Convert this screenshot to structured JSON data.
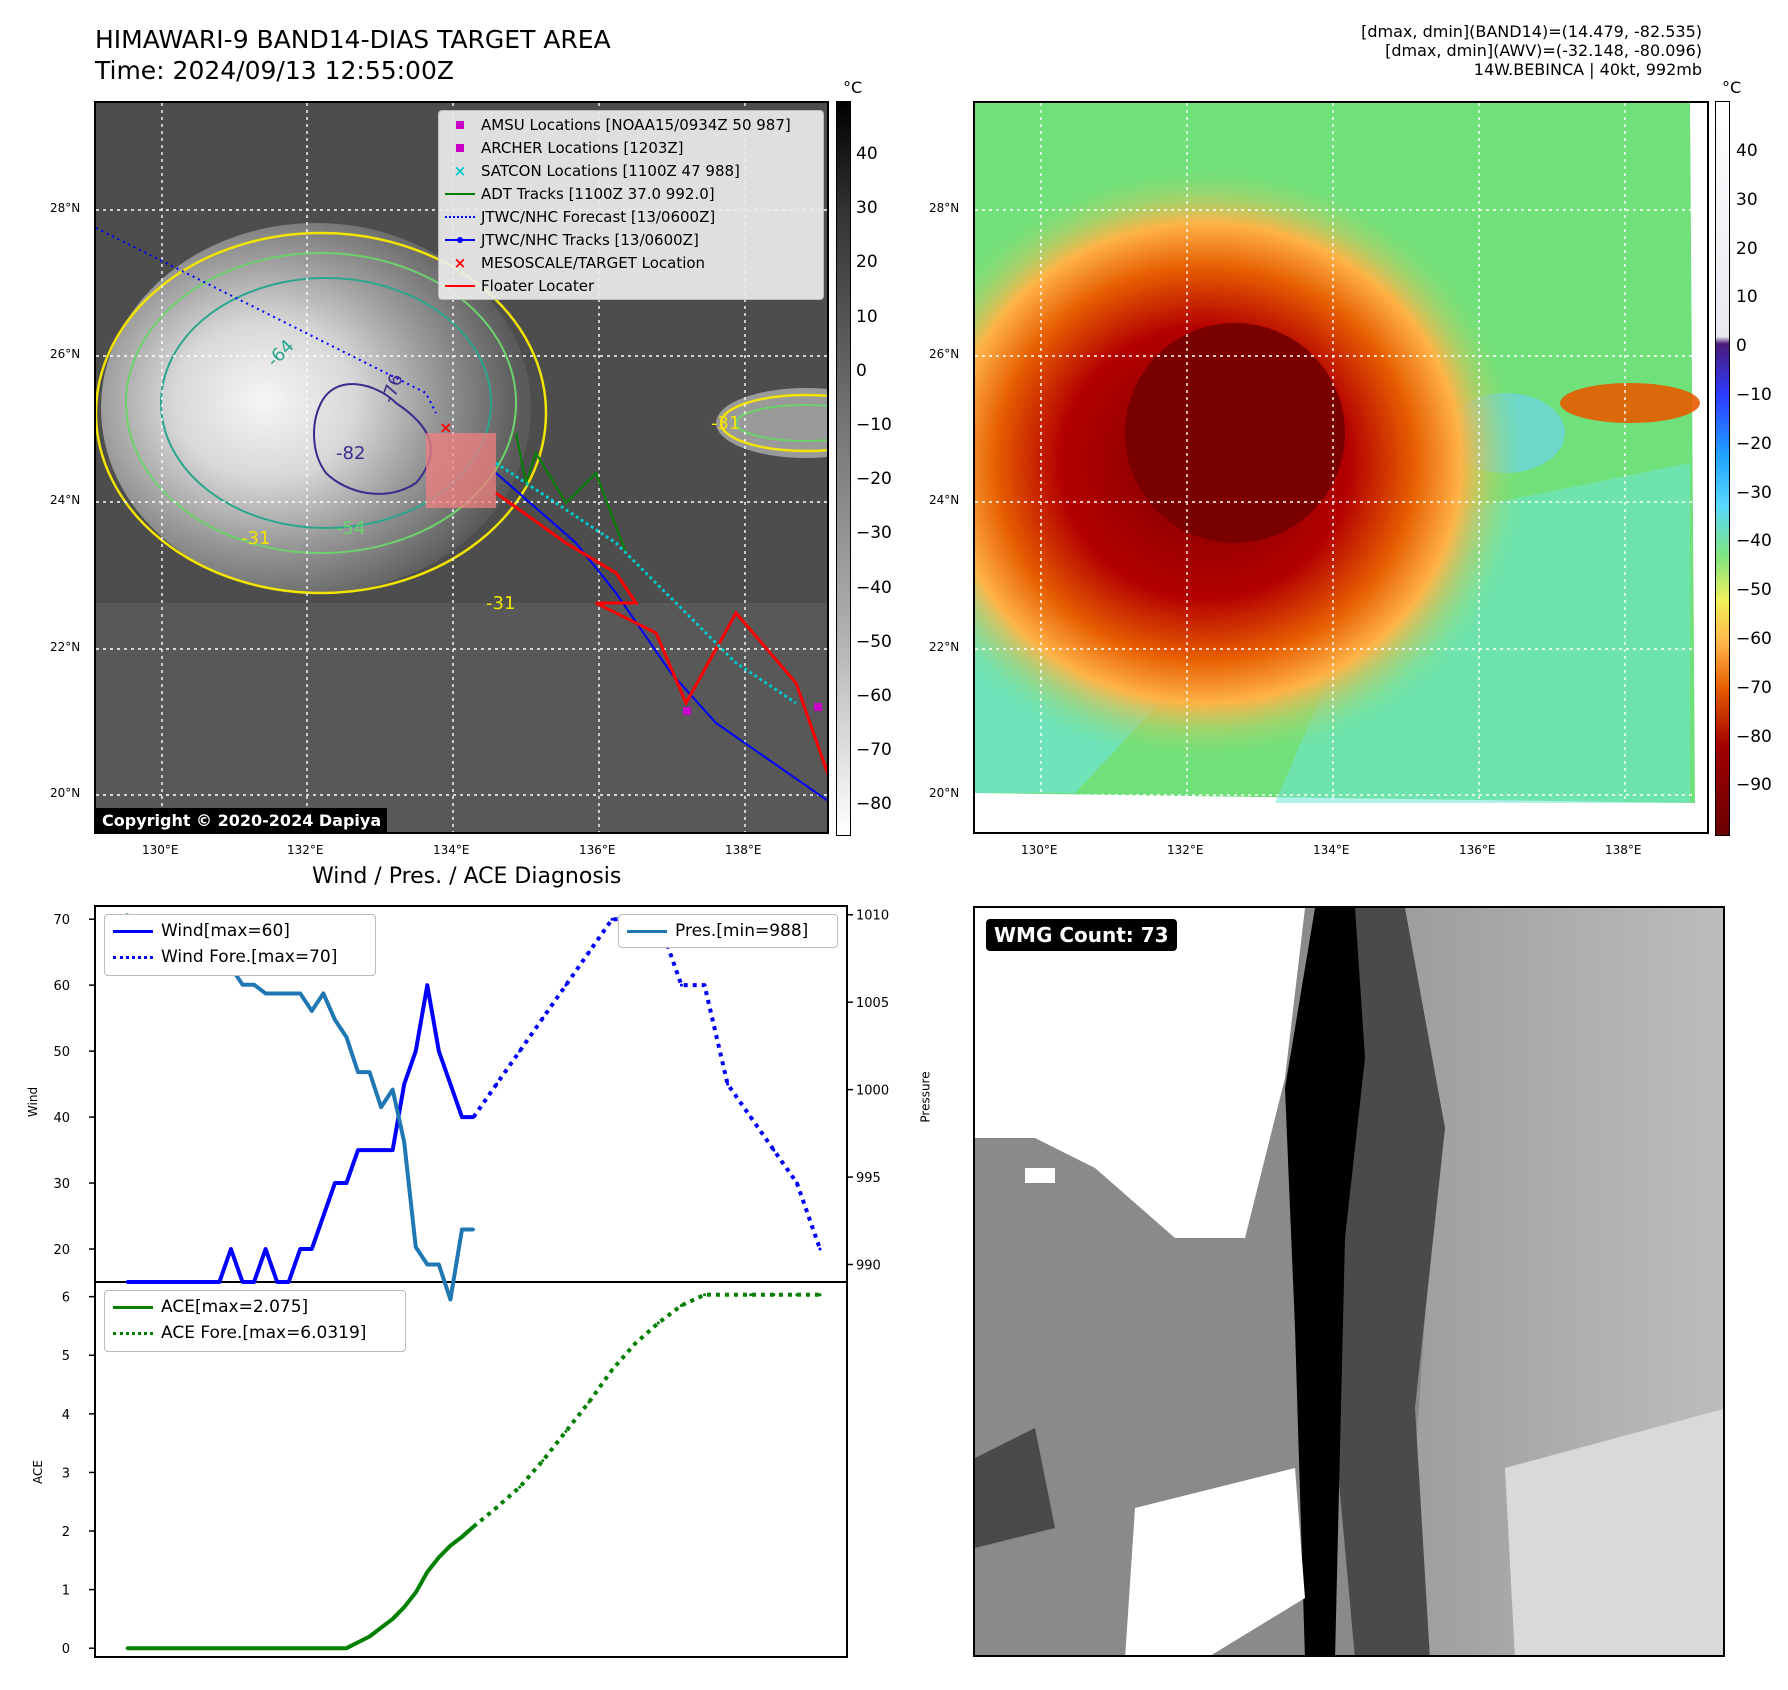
{
  "header": {
    "title": "HIMAWARI-9 BAND14-DIAS TARGET AREA",
    "time": "Time: 2024/09/13 12:55:00Z",
    "meta_line1": "[dmax, dmin](BAND14)=(14.479, -82.535)",
    "meta_line2": "[dmax, dmin](AWV)=(-32.148, -80.096)",
    "meta_line3": "14W.BEBINCA | 40kt, 992mb"
  },
  "map_left": {
    "copyright": "Copyright © 2020-2024 Dapiya",
    "lat_labels": [
      "28°N",
      "26°N",
      "24°N",
      "22°N",
      "20°N"
    ],
    "lon_labels": [
      "130°E",
      "132°E",
      "134°E",
      "136°E",
      "138°E"
    ],
    "contour_labels": [
      "-76",
      "-82",
      "-64",
      "-54",
      "-31",
      "-31",
      "-31"
    ],
    "colorbar": {
      "unit": "°C",
      "ticks": [
        "40",
        "30",
        "20",
        "10",
        "0",
        "−10",
        "−20",
        "−30",
        "−40",
        "−50",
        "−60",
        "−70",
        "−80"
      ]
    },
    "legend": [
      {
        "label": "AMSU Locations [NOAA15/0934Z 50 987]",
        "marker": "square",
        "color": "#c800c8"
      },
      {
        "label": "ARCHER Locations [1203Z]",
        "marker": "square",
        "color": "#c800c8"
      },
      {
        "label": "SATCON Locations [1100Z 47 988]",
        "marker": "x",
        "color": "#00c8c8"
      },
      {
        "label": "ADT Tracks [1100Z 37.0 992.0]",
        "marker": "line",
        "color": "#008000"
      },
      {
        "label": "JTWC/NHC Forecast [13/0600Z]",
        "marker": "dotted",
        "color": "#0000ff"
      },
      {
        "label": "JTWC/NHC Tracks [13/0600Z]",
        "marker": "line-dot",
        "color": "#0000ff"
      },
      {
        "label": "MESOSCALE/TARGET Location",
        "marker": "x",
        "color": "#ff0000"
      },
      {
        "label": "Floater Locater",
        "marker": "line",
        "color": "#ff0000"
      }
    ]
  },
  "map_right": {
    "lat_labels": [
      "28°N",
      "26°N",
      "24°N",
      "22°N",
      "20°N"
    ],
    "lon_labels": [
      "130°E",
      "132°E",
      "134°E",
      "136°E",
      "138°E"
    ],
    "colorbar": {
      "unit": "°C",
      "ticks": [
        "40",
        "30",
        "20",
        "10",
        "0",
        "−10",
        "−20",
        "−30",
        "−40",
        "−50",
        "−60",
        "−70",
        "−80",
        "−90"
      ]
    }
  },
  "diagnosis": {
    "title": "Wind / Pres. / ACE Diagnosis",
    "wind_ylabel": "Wind",
    "pres_ylabel": "Pressure",
    "ace_ylabel": "ACE",
    "legend_wind": "Wind[max=60]",
    "legend_wind_fore": "Wind Fore.[max=70]",
    "legend_pres": "Pres.[min=988]",
    "legend_ace": "ACE[max=2.075]",
    "legend_ace_fore": "ACE Fore.[max=6.0319]"
  },
  "wmg": {
    "label": "WMG Count: 73"
  },
  "chart_data": [
    {
      "type": "line",
      "title": "Wind / Pres. / ACE Diagnosis",
      "ylabel": "Wind",
      "ylim": [
        15,
        72
      ],
      "yticks": [
        20,
        30,
        40,
        50,
        60,
        70
      ],
      "series": [
        {
          "name": "Wind[max=60]",
          "color": "#0000ff",
          "style": "solid",
          "x": [
            0,
            1,
            2,
            3,
            4,
            5,
            6,
            7,
            8,
            9,
            10,
            11,
            12,
            13,
            14,
            15,
            16,
            17,
            18,
            19,
            20,
            21,
            22,
            23,
            24,
            25,
            26,
            27,
            28,
            29,
            30
          ],
          "values": [
            15,
            15,
            15,
            15,
            15,
            15,
            15,
            15,
            15,
            20,
            15,
            15,
            20,
            15,
            15,
            20,
            20,
            25,
            30,
            30,
            35,
            35,
            35,
            35,
            45,
            50,
            60,
            50,
            45,
            40,
            40
          ]
        },
        {
          "name": "Wind Fore.[max=70]",
          "color": "#0000ff",
          "style": "dotted",
          "x": [
            30,
            32,
            34,
            36,
            38,
            40,
            42,
            44,
            46,
            48,
            50,
            52,
            54,
            56,
            58,
            60
          ],
          "values": [
            40,
            45,
            50,
            55,
            60,
            65,
            70,
            70,
            70,
            60,
            60,
            45,
            40,
            35,
            30,
            20
          ]
        }
      ]
    },
    {
      "type": "line",
      "ylabel": "Pressure",
      "ylim": [
        989,
        1010.5
      ],
      "yticks": [
        990,
        995,
        1000,
        1005,
        1010
      ],
      "series": [
        {
          "name": "Pres.[min=988]",
          "color": "#1f77b4",
          "style": "solid",
          "x": [
            0,
            1,
            2,
            3,
            4,
            5,
            6,
            7,
            8,
            9,
            10,
            11,
            12,
            13,
            14,
            15,
            16,
            17,
            18,
            19,
            20,
            21,
            22,
            23,
            24,
            25,
            26,
            27,
            28,
            29,
            30
          ],
          "values": [
            1010,
            1009,
            1009,
            1009,
            1009,
            1009.5,
            1009.5,
            1008,
            1008,
            1007,
            1006,
            1006,
            1005.5,
            1005.5,
            1005.5,
            1005.5,
            1004.5,
            1005.5,
            1004,
            1003,
            1001,
            1001,
            999,
            1000,
            997,
            991,
            990,
            990,
            988,
            992,
            992
          ]
        }
      ]
    },
    {
      "type": "line",
      "ylabel": "ACE",
      "ylim": [
        -0.15,
        6.25
      ],
      "yticks": [
        0,
        1,
        2,
        3,
        4,
        5,
        6
      ],
      "series": [
        {
          "name": "ACE[max=2.075]",
          "color": "#008000",
          "style": "solid",
          "x": [
            0,
            19,
            21,
            23,
            24,
            25,
            26,
            27,
            28,
            29,
            30
          ],
          "values": [
            0,
            0,
            0.2,
            0.5,
            0.7,
            0.95,
            1.3,
            1.55,
            1.75,
            1.9,
            2.075
          ]
        },
        {
          "name": "ACE Fore.[max=6.0319]",
          "color": "#008000",
          "style": "dotted",
          "x": [
            30,
            32,
            34,
            36,
            38,
            40,
            42,
            44,
            46,
            48,
            50,
            52,
            54,
            56,
            58,
            60
          ],
          "values": [
            2.075,
            2.4,
            2.75,
            3.2,
            3.7,
            4.2,
            4.75,
            5.2,
            5.55,
            5.85,
            6.0319,
            6.0319,
            6.0319,
            6.0319,
            6.0319,
            6.0319
          ]
        }
      ]
    }
  ]
}
